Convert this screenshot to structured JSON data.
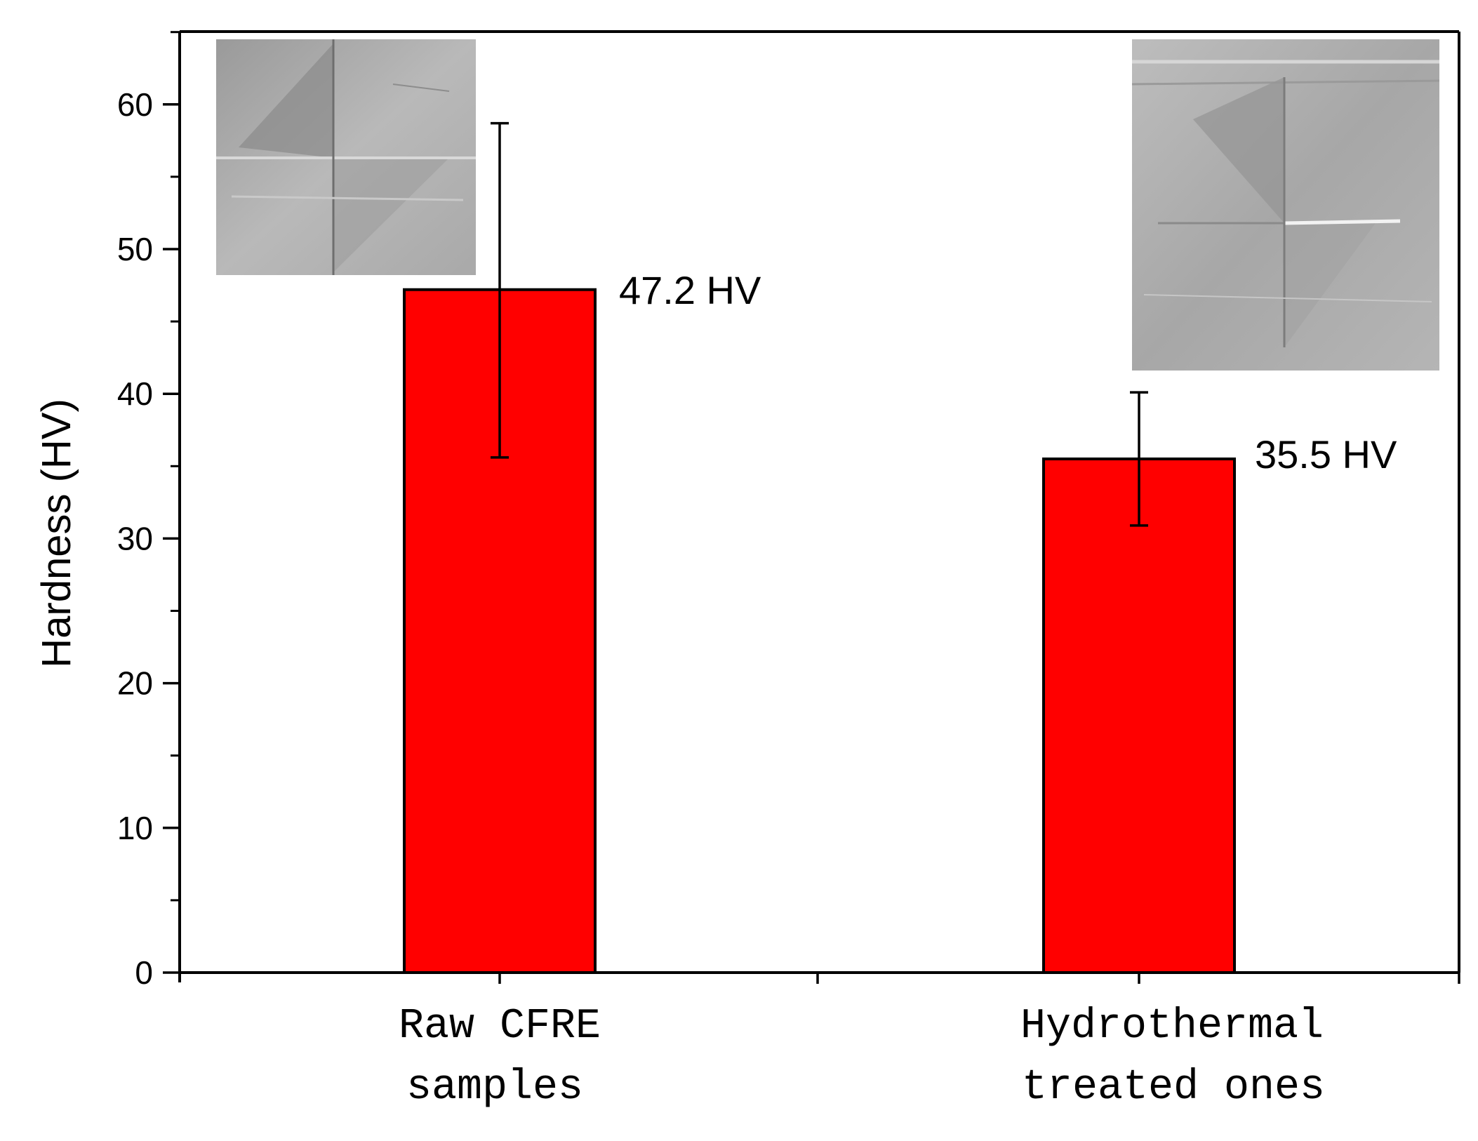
{
  "chart_data": {
    "type": "bar",
    "title": "",
    "xlabel": "",
    "ylabel": "Hardness (HV)",
    "ylim": [
      0,
      65
    ],
    "yticks": [
      0,
      10,
      20,
      30,
      40,
      50,
      60
    ],
    "categories": [
      {
        "line1": "Raw CFRE",
        "line2": "samples"
      },
      {
        "line1": "Hydrothermal",
        "line2": "treated ones"
      }
    ],
    "values": [
      47.2,
      35.5
    ],
    "error_low": [
      35.6,
      30.9
    ],
    "error_high": [
      58.7,
      40.1
    ],
    "data_labels": [
      "47.2 HV",
      "35.5 HV"
    ],
    "bar_color": "#ff0000",
    "insets": [
      "indentation-micrograph-icon",
      "indentation-micrograph-icon"
    ]
  }
}
